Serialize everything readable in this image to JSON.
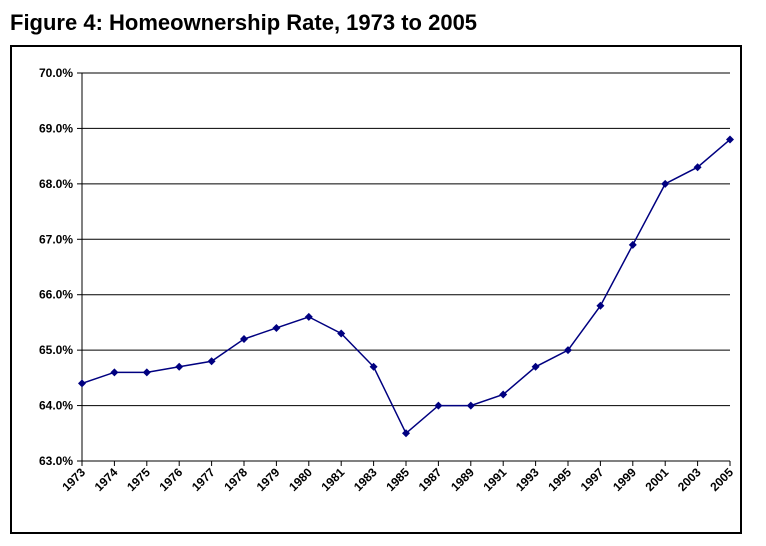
{
  "figure": {
    "title": "Figure 4: Homeownership Rate, 1973 to 2005"
  },
  "chart_data": {
    "type": "line",
    "title": "Figure 4: Homeownership Rate, 1973 to 2005",
    "xlabel": "",
    "ylabel": "",
    "categories": [
      "1973",
      "1974",
      "1975",
      "1976",
      "1977",
      "1978",
      "1979",
      "1980",
      "1981",
      "1983",
      "1985",
      "1987",
      "1989",
      "1991",
      "1993",
      "1995",
      "1997",
      "1999",
      "2001",
      "2003",
      "2005"
    ],
    "series": [
      {
        "values": [
          64.4,
          64.6,
          64.6,
          64.7,
          64.8,
          65.2,
          65.4,
          65.6,
          65.3,
          64.7,
          63.5,
          64.0,
          64.0,
          64.2,
          64.7,
          65.0,
          65.8,
          66.9,
          68.0,
          68.3,
          68.8
        ],
        "color": "#000080",
        "marker": "diamond"
      }
    ],
    "ylim": [
      63.0,
      70.0
    ],
    "y_ticks": [
      "63.0%",
      "64.0%",
      "65.0%",
      "66.0%",
      "67.0%",
      "68.0%",
      "69.0%",
      "70.0%"
    ],
    "grid": "horizontal",
    "legend": "none"
  }
}
